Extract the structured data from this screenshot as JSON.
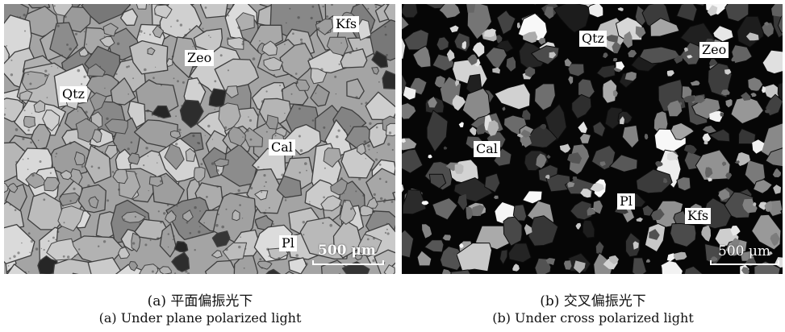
{
  "figure": {
    "panel_a": {
      "labels": {
        "kfs": "Kfs",
        "zeo": "Zeo",
        "qtz": "Qtz",
        "cal": "Cal",
        "pl": "Pl"
      },
      "scale_bar": "500 μm",
      "caption_zh": "(a) 平面偏振光下",
      "caption_en": "(a) Under plane polarized light"
    },
    "panel_b": {
      "labels": {
        "qtz": "Qtz",
        "zeo": "Zeo",
        "cal": "Cal",
        "pl": "Pl",
        "kfs": "Kfs"
      },
      "scale_bar": "500 μm",
      "caption_zh": "(b) 交叉偏振光下",
      "caption_en": "(b) Under cross polarized light"
    }
  }
}
